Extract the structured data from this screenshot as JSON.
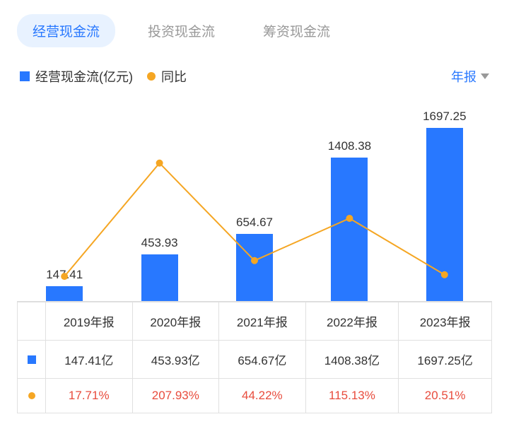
{
  "tabs": [
    {
      "label": "经营现金流",
      "active": true
    },
    {
      "label": "投资现金流",
      "active": false
    },
    {
      "label": "筹资现金流",
      "active": false
    }
  ],
  "legend": {
    "series1": {
      "label": "经营现金流(亿元)",
      "color": "#2878ff"
    },
    "series2": {
      "label": "同比",
      "color": "#f5a623"
    }
  },
  "period_selector": {
    "label": "年报"
  },
  "chart": {
    "type": "bar+line",
    "categories": [
      "2019年报",
      "2020年报",
      "2021年报",
      "2022年报",
      "2023年报"
    ],
    "bar_values": [
      147.41,
      453.93,
      654.67,
      1408.38,
      1697.25
    ],
    "bar_labels": [
      "147.41",
      "453.93",
      "654.67",
      "1408.38",
      "1697.25"
    ],
    "bar_color": "#2878ff",
    "bar_max": 1800,
    "line_values": [
      17.71,
      207.93,
      44.22,
      115.13,
      20.51
    ],
    "line_color": "#f5a623",
    "line_max": 260,
    "background_color": "#ffffff"
  },
  "table": {
    "row1_values": [
      "147.41亿",
      "453.93亿",
      "654.67亿",
      "1408.38亿",
      "1697.25亿"
    ],
    "row2_values": [
      "17.71%",
      "207.93%",
      "44.22%",
      "115.13%",
      "20.51%"
    ],
    "row1_marker_color": "#2878ff",
    "row2_marker_color": "#f5a623",
    "row2_text_color": "#e84c3d"
  }
}
